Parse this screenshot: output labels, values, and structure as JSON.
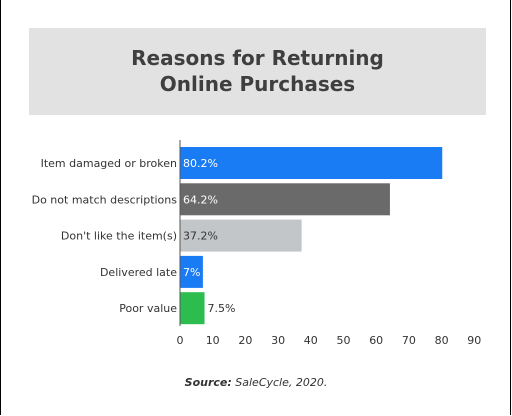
{
  "chart_data": {
    "type": "bar",
    "orientation": "horizontal",
    "title": "Reasons for Returning Online Purchases",
    "categories": [
      "Item damaged or broken",
      "Do not match descriptions",
      "Don't like the item(s)",
      "Delivered late",
      "Poor value"
    ],
    "values": [
      80.2,
      64.2,
      37.2,
      7,
      7.5
    ],
    "data_labels": [
      "80.2%",
      "64.2%",
      "37.2%",
      "7%",
      "7.5%"
    ],
    "colors": [
      "#1a7cf5",
      "#6a6a6a",
      "#c3c6c8",
      "#1a7cf5",
      "#2dbd4e"
    ],
    "label_colors": [
      "#ffffff",
      "#ffffff",
      "#333333",
      "#ffffff",
      "#333333"
    ],
    "label_inside": [
      true,
      true,
      true,
      true,
      false
    ],
    "xticks": [
      0,
      10,
      20,
      30,
      40,
      50,
      60,
      70,
      80,
      90
    ],
    "xlim": [
      0,
      90
    ],
    "grid": false
  },
  "source": {
    "label": "Source:",
    "text": "SaleCycle, 2020."
  }
}
